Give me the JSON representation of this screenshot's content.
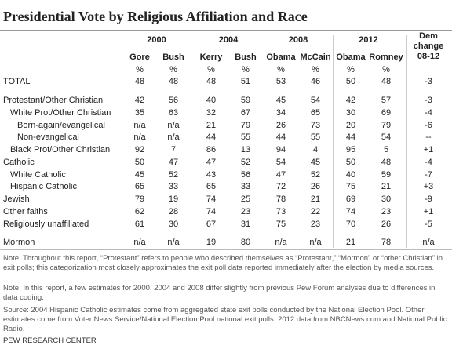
{
  "header": {
    "title": "Presidential Vote by Religious Affiliation and Race"
  },
  "table": {
    "years": [
      "2000",
      "2004",
      "2008",
      "2012"
    ],
    "change_header": [
      "Dem",
      "change",
      "08-12"
    ],
    "candidates": [
      "Gore",
      "Bush",
      "Kerry",
      "Bush",
      "Obama",
      "McCain",
      "Obama",
      "Romney"
    ],
    "units": [
      "%",
      "%",
      "%",
      "%",
      "%",
      "%",
      "%",
      "%"
    ],
    "rows": [
      [
        "TOTAL",
        "48",
        "48",
        "48",
        "51",
        "53",
        "46",
        "50",
        "48",
        "-3"
      ],
      [
        "Protestant/Other Christian",
        "42",
        "56",
        "40",
        "59",
        "45",
        "54",
        "42",
        "57",
        "-3"
      ],
      [
        "White Prot/Other Christian",
        "35",
        "63",
        "32",
        "67",
        "34",
        "65",
        "30",
        "69",
        "-4"
      ],
      [
        "Born-again/evangelical",
        "n/a",
        "n/a",
        "21",
        "79",
        "26",
        "73",
        "20",
        "79",
        "-6"
      ],
      [
        "Non-evangelical",
        "n/a",
        "n/a",
        "44",
        "55",
        "44",
        "55",
        "44",
        "54",
        "--"
      ],
      [
        "Black Prot/Other Christian",
        "92",
        "7",
        "86",
        "13",
        "94",
        "4",
        "95",
        "5",
        "+1"
      ],
      [
        "Catholic",
        "50",
        "47",
        "47",
        "52",
        "54",
        "45",
        "50",
        "48",
        "-4"
      ],
      [
        "White Catholic",
        "45",
        "52",
        "43",
        "56",
        "47",
        "52",
        "40",
        "59",
        "-7"
      ],
      [
        "Hispanic Catholic",
        "65",
        "33",
        "65",
        "33",
        "72",
        "26",
        "75",
        "21",
        "+3"
      ],
      [
        "Jewish",
        "79",
        "19",
        "74",
        "25",
        "78",
        "21",
        "69",
        "30",
        "-9"
      ],
      [
        "Other faiths",
        "62",
        "28",
        "74",
        "23",
        "73",
        "22",
        "74",
        "23",
        "+1"
      ],
      [
        "Religiously unaffiliated",
        "61",
        "30",
        "67",
        "31",
        "75",
        "23",
        "70",
        "26",
        "-5"
      ],
      [
        "Mormon",
        "n/a",
        "n/a",
        "19",
        "80",
        "n/a",
        "n/a",
        "21",
        "78",
        "n/a"
      ]
    ]
  },
  "notes": [
    "Note: Throughout this report, “Protestant” refers to people who described themselves as “Protestant,” “Mormon” or “other Christian” in exit polls; this categorization most closely approximates the exit poll data reported immediately after the election by media sources.",
    "Note: In this report, a few estimates for 2000, 2004 and 2008 differ slightly from previous Pew Forum analyses due to differences in data coding.",
    "Source: 2004 Hispanic Catholic estimates come from aggregated state exit polls conducted by the National Election Pool. Other estimates come from Voter News Service/National Election Pool national exit polls. 2012 data from NBCNews.com and National Public Radio."
  ],
  "footer": "PEW RESEARCH CENTER"
}
